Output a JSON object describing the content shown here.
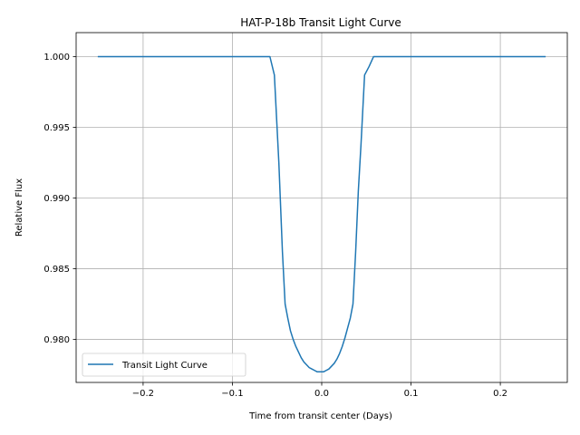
{
  "chart_data": {
    "type": "line",
    "title": "HAT-P-18b Transit Light Curve",
    "xlabel": "Time from transit center (Days)",
    "ylabel": "Relative Flux",
    "xlim": [
      -0.275,
      0.275
    ],
    "ylim": [
      0.97695,
      1.0017
    ],
    "xticks": [
      -0.2,
      -0.1,
      0.0,
      0.1,
      0.2
    ],
    "xtick_labels": [
      "−0.2",
      "−0.1",
      "0.0",
      "0.1",
      "0.2"
    ],
    "yticks": [
      0.98,
      0.985,
      0.99,
      0.995,
      1.0
    ],
    "ytick_labels": [
      "0.980",
      "0.985",
      "0.990",
      "0.995",
      "1.000"
    ],
    "grid": true,
    "legend_position": "lower-left",
    "series": [
      {
        "name": "Transit Light Curve",
        "color": "#1f77b4",
        "x": [
          -0.25,
          -0.058,
          -0.053,
          -0.048,
          -0.044,
          -0.041,
          -0.038,
          -0.035,
          -0.032,
          -0.029,
          -0.026,
          -0.023,
          -0.02,
          -0.017,
          -0.014,
          -0.011,
          -0.008,
          -0.005,
          -0.002,
          0.0,
          0.002,
          0.005,
          0.008,
          0.011,
          0.014,
          0.017,
          0.02,
          0.023,
          0.026,
          0.029,
          0.032,
          0.035,
          0.038,
          0.041,
          0.044,
          0.048,
          0.053,
          0.058,
          0.25
        ],
        "y": [
          1.0,
          1.0,
          0.9987,
          0.9925,
          0.9862,
          0.9825,
          0.9815,
          0.9806,
          0.98,
          0.9795,
          0.9791,
          0.9787,
          0.9784,
          0.9782,
          0.978,
          0.9779,
          0.9778,
          0.9777,
          0.9777,
          0.9777,
          0.9777,
          0.9778,
          0.9779,
          0.9781,
          0.9783,
          0.9786,
          0.979,
          0.9795,
          0.9801,
          0.9808,
          0.9815,
          0.9825,
          0.9862,
          0.9905,
          0.9938,
          0.9987,
          0.9993,
          1.0,
          1.0
        ]
      }
    ]
  }
}
